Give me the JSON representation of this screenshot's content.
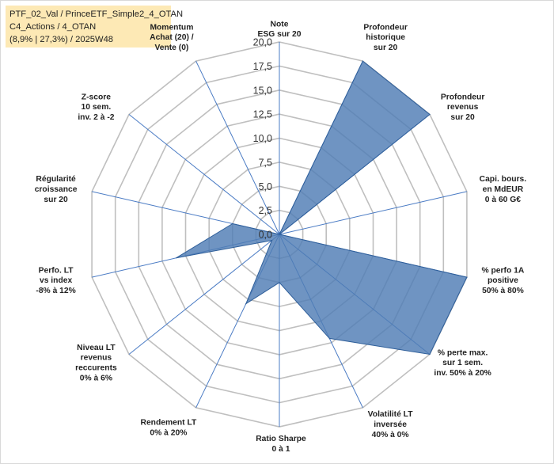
{
  "info": {
    "line1": "PTF_02_Val / PrinceETF_Simple2_4_OTAN",
    "line2": "C4_Actions / 4_OTAN",
    "line3": "(8,9% | 27,3%) / 2025W48",
    "bg_color": "#fde9b5"
  },
  "chart_data": {
    "type": "radar",
    "title": "",
    "rmax": 20,
    "ticks": [
      "0,0",
      "2,5",
      "5,0",
      "7,5",
      "10,0",
      "12,5",
      "15,0",
      "17,5",
      "20,0"
    ],
    "tick_values": [
      0,
      2.5,
      5,
      7.5,
      10,
      12.5,
      15,
      17.5,
      20
    ],
    "grid": true,
    "axes": [
      [
        "Note",
        "ESG sur 20"
      ],
      [
        "Profondeur",
        "historique",
        "sur 20"
      ],
      [
        "Profondeur",
        "revenus",
        "sur 20"
      ],
      [
        "Capi. bours.",
        "en MdEUR",
        "0 à 60 G€"
      ],
      [
        "% perfo 1A",
        "positive",
        "50% à 80%"
      ],
      [
        "% perte max.",
        "sur 1 sem.",
        "inv. 50% à 20%"
      ],
      [
        "Volatilité LT",
        "inversée",
        "40% à 0%"
      ],
      [
        "Ratio Sharpe",
        "0 à 1"
      ],
      [
        "Rendement LT",
        "0% à 20%"
      ],
      [
        "Niveau LT",
        "revenus",
        "reccurents",
        "0% à 6%"
      ],
      [
        "Perfo. LT",
        "vs index",
        "-8% à 12%"
      ],
      [
        "Régularité",
        "croissance",
        "sur 20"
      ],
      [
        "Z-score",
        "10 sem.",
        "inv. 2 à -2"
      ],
      [
        "Momentum",
        "Achat (20) /",
        "Vente (0)"
      ]
    ],
    "series": [
      {
        "values": [
          0,
          20,
          20,
          0,
          20,
          20,
          12,
          5,
          8,
          1,
          11,
          5,
          0,
          0
        ],
        "fill": "#4f7db5",
        "stroke": "#2f5f9a"
      }
    ],
    "colors": {
      "grid": "#bfbfbf",
      "axis": "#4a7bc4"
    }
  }
}
